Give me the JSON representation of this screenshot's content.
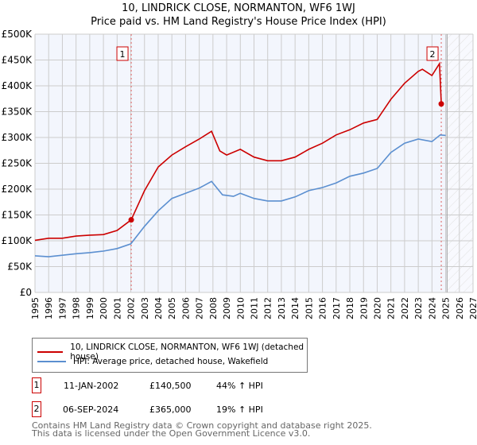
{
  "chart_data": {
    "type": "line",
    "title": "10, LINDRICK CLOSE, NORMANTON, WF6 1WJ",
    "subtitle": "Price paid vs. HM Land Registry's House Price Index (HPI)",
    "xlim": [
      1995,
      2027
    ],
    "ylim": [
      0,
      500000
    ],
    "x_ticks": [
      "1995",
      "1996",
      "1997",
      "1998",
      "1999",
      "2000",
      "2001",
      "2002",
      "2003",
      "2004",
      "2005",
      "2006",
      "2007",
      "2008",
      "2009",
      "2010",
      "2011",
      "2012",
      "2013",
      "2014",
      "2015",
      "2016",
      "2017",
      "2018",
      "2019",
      "2020",
      "2021",
      "2022",
      "2023",
      "2024",
      "2025",
      "2026",
      "2027"
    ],
    "y_ticks": [
      {
        "v": 0,
        "l": "£0"
      },
      {
        "v": 50000,
        "l": "£50K"
      },
      {
        "v": 100000,
        "l": "£100K"
      },
      {
        "v": 150000,
        "l": "£150K"
      },
      {
        "v": 200000,
        "l": "£200K"
      },
      {
        "v": 250000,
        "l": "£250K"
      },
      {
        "v": 300000,
        "l": "£300K"
      },
      {
        "v": 350000,
        "l": "£350K"
      },
      {
        "v": 400000,
        "l": "£400K"
      },
      {
        "v": 450000,
        "l": "£450K"
      },
      {
        "v": 500000,
        "l": "£500K"
      }
    ],
    "grid": true,
    "future_hatch_from": 2025.1,
    "series": [
      {
        "name": "10, LINDRICK CLOSE, NORMANTON, WF6 1WJ (detached house)",
        "color": "#cc0000",
        "x": [
          1995,
          1996,
          1997,
          1998,
          1999,
          2000,
          2001,
          2002.03,
          2003,
          2004,
          2005,
          2006,
          2007,
          2007.9,
          2008.5,
          2009,
          2010,
          2011,
          2012,
          2013,
          2014,
          2015,
          2016,
          2017,
          2018,
          2019,
          2020,
          2021,
          2022,
          2023,
          2023.3,
          2024,
          2024.55,
          2024.68
        ],
        "y": [
          101000,
          105000,
          105000,
          109000,
          111000,
          112000,
          120000,
          140500,
          197000,
          243000,
          266000,
          282000,
          297000,
          312000,
          274000,
          266000,
          277000,
          262000,
          255000,
          255000,
          262000,
          277000,
          289000,
          305000,
          315000,
          328000,
          335000,
          374000,
          405000,
          428000,
          432000,
          420000,
          443000,
          365000
        ]
      },
      {
        "name": "HPI: Average price, detached house, Wakefield",
        "color": "#5b8fd0",
        "x": [
          1995,
          1996,
          1997,
          1998,
          1999,
          2000,
          2001,
          2002,
          2003,
          2004,
          2005,
          2006,
          2007,
          2007.9,
          2008.7,
          2009.5,
          2010,
          2011,
          2012,
          2013,
          2014,
          2015,
          2016,
          2017,
          2018,
          2019,
          2020,
          2021,
          2022,
          2023,
          2024,
          2024.6,
          2025
        ],
        "y": [
          71000,
          69000,
          72000,
          75000,
          77000,
          80000,
          85000,
          94000,
          128000,
          158000,
          182000,
          192000,
          202000,
          215000,
          189000,
          186000,
          192000,
          182000,
          177000,
          177000,
          185000,
          197000,
          203000,
          212000,
          225000,
          231000,
          240000,
          271000,
          289000,
          297000,
          292000,
          305000,
          304000
        ]
      }
    ],
    "annotations": [
      {
        "label": "1",
        "x": 2002.03,
        "y": 140500
      },
      {
        "label": "2",
        "x": 2024.68,
        "y": 365000
      }
    ]
  },
  "legend": {
    "red": "10, LINDRICK CLOSE, NORMANTON, WF6 1WJ (detached house)",
    "blue": "HPI: Average price, detached house, Wakefield"
  },
  "transactions": [
    {
      "num": "1",
      "date": "11-JAN-2002",
      "price": "£140,500",
      "hpi": "44% ↑ HPI"
    },
    {
      "num": "2",
      "date": "06-SEP-2024",
      "price": "£365,000",
      "hpi": "19% ↑ HPI"
    }
  ],
  "footer": {
    "line1": "Contains HM Land Registry data © Crown copyright and database right 2025.",
    "line2": "This data is licensed under the Open Government Licence v3.0."
  }
}
